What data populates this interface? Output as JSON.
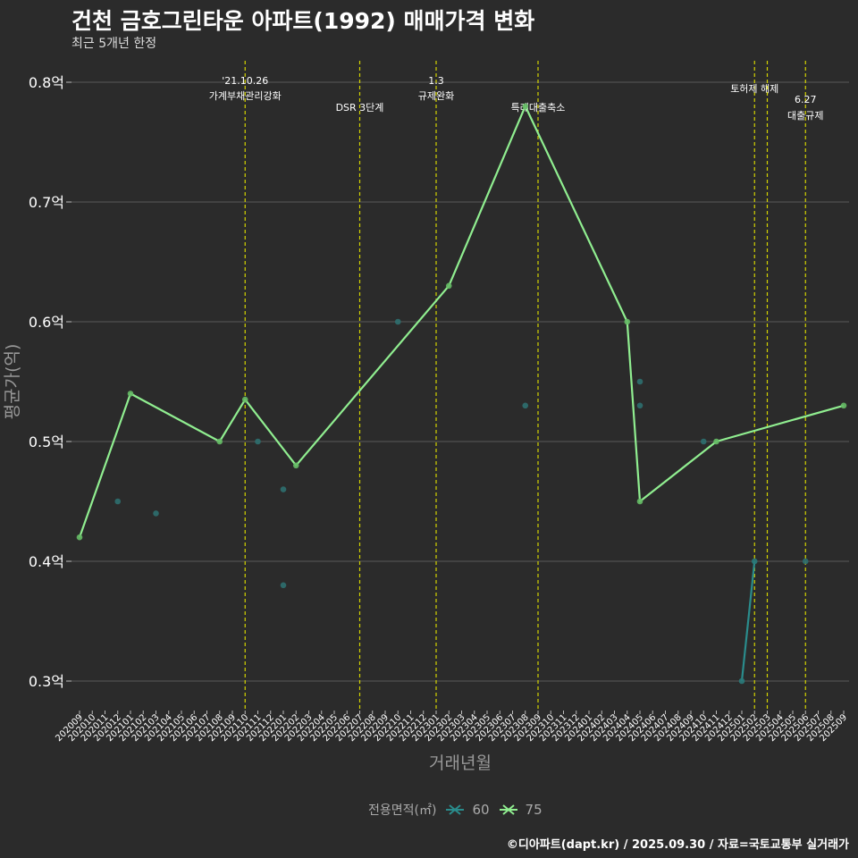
{
  "header": {
    "title": "건천 금호그린타운 아파트(1992) 매매가격 변화",
    "subtitle": "최근 5개년 한정"
  },
  "footer": {
    "credit": "©디아파트(dapt.kr) / 2025.09.30 / 자료=국토교통부 실거래가"
  },
  "legend": {
    "title": "전용면적(㎡)",
    "items": [
      {
        "label": "60",
        "color": "#2a8c8c"
      },
      {
        "label": "75",
        "color": "#90ee90"
      }
    ]
  },
  "chart_data": {
    "type": "line",
    "xlabel": "거래년월",
    "ylabel": "평균가(억)",
    "ylim": [
      0.275,
      0.82
    ],
    "y_ticks": [
      {
        "value": 0.3,
        "label": "0.3억"
      },
      {
        "value": 0.4,
        "label": "0.4억"
      },
      {
        "value": 0.5,
        "label": "0.5억"
      },
      {
        "value": 0.6,
        "label": "0.6억"
      },
      {
        "value": 0.7,
        "label": "0.7억"
      },
      {
        "value": 0.8,
        "label": "0.8억"
      }
    ],
    "categories": [
      "202009",
      "202010",
      "202011",
      "202012",
      "202101",
      "202102",
      "202103",
      "202104",
      "202105",
      "202106",
      "202107",
      "202108",
      "202109",
      "202110",
      "202111",
      "202112",
      "202201",
      "202202",
      "202203",
      "202204",
      "202205",
      "202206",
      "202207",
      "202208",
      "202209",
      "202210",
      "202211",
      "202212",
      "202301",
      "202302",
      "202303",
      "202304",
      "202305",
      "202306",
      "202307",
      "202308",
      "202309",
      "202310",
      "202311",
      "202312",
      "202401",
      "202402",
      "202403",
      "202404",
      "202405",
      "202406",
      "202407",
      "202408",
      "202409",
      "202410",
      "202411",
      "202412",
      "202501",
      "202502",
      "202503",
      "202504",
      "202505",
      "202506",
      "202507",
      "202508",
      "202509"
    ],
    "series": [
      {
        "name": "60",
        "color": "#2a8c8c",
        "line": [
          {
            "x": "202501",
            "y": 0.3
          },
          {
            "x": "202502",
            "y": 0.4
          }
        ],
        "scatter": [
          {
            "x": "202012",
            "y": 0.45
          },
          {
            "x": "202103",
            "y": 0.44
          },
          {
            "x": "202111",
            "y": 0.5
          },
          {
            "x": "202201",
            "y": 0.46
          },
          {
            "x": "202201",
            "y": 0.38
          },
          {
            "x": "202210",
            "y": 0.6
          },
          {
            "x": "202308",
            "y": 0.53
          },
          {
            "x": "202405",
            "y": 0.55
          },
          {
            "x": "202405",
            "y": 0.53
          },
          {
            "x": "202410",
            "y": 0.5
          },
          {
            "x": "202506",
            "y": 0.4
          }
        ]
      },
      {
        "name": "75",
        "color": "#90ee90",
        "line": [
          {
            "x": "202009",
            "y": 0.42
          },
          {
            "x": "202101",
            "y": 0.54
          },
          {
            "x": "202108",
            "y": 0.5
          },
          {
            "x": "202110",
            "y": 0.535
          },
          {
            "x": "202202",
            "y": 0.48
          },
          {
            "x": "202302",
            "y": 0.63
          },
          {
            "x": "202308",
            "y": 0.78
          },
          {
            "x": "202404",
            "y": 0.6
          },
          {
            "x": "202405",
            "y": 0.45
          },
          {
            "x": "202411",
            "y": 0.5
          },
          {
            "x": "202509",
            "y": 0.53
          }
        ],
        "scatter": []
      }
    ],
    "annotations": [
      {
        "x": "202110",
        "line1": "'21.10.26",
        "line2": "가계부채관리강화",
        "row": "top"
      },
      {
        "x": "202207",
        "line1": "",
        "line2": "DSR 3단계",
        "row": "low"
      },
      {
        "x": "202301",
        "line1": "1.3",
        "line2": "규제완화",
        "row": "top"
      },
      {
        "x": "202309",
        "line1": "",
        "line2": "특례대출축소",
        "row": "low"
      },
      {
        "x": "202502",
        "line1": "",
        "line2": "토허제 해제",
        "row": "mid"
      },
      {
        "x": "202503",
        "line1": "",
        "line2": "",
        "row": "none"
      },
      {
        "x": "202506",
        "line1": "6.27",
        "line2": "대출규제",
        "row": "low2"
      }
    ]
  }
}
